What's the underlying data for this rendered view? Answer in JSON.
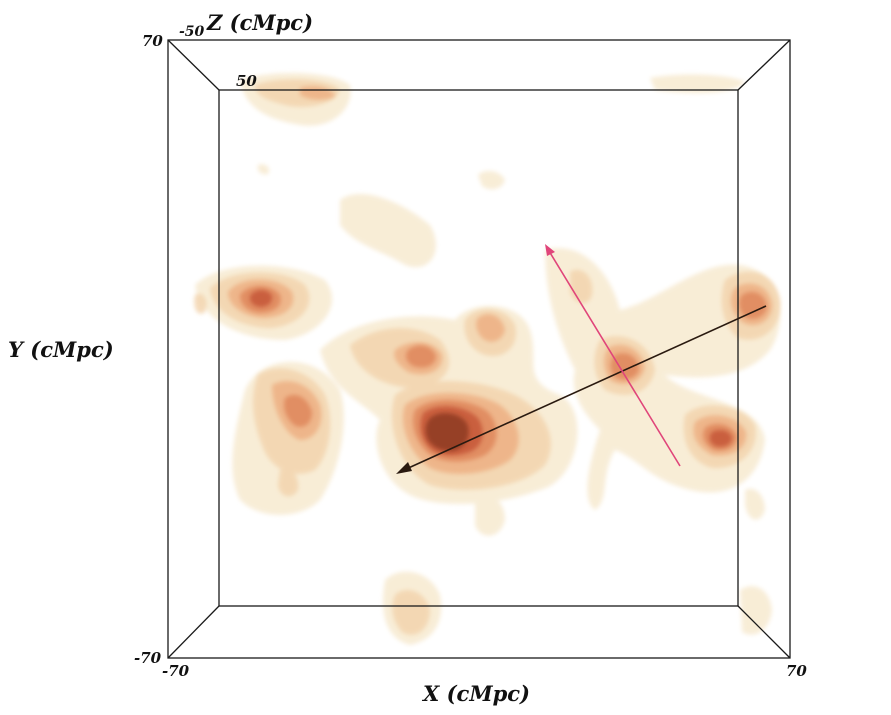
{
  "axes": {
    "x": {
      "label": "X (cMpc)",
      "min_label": "-70",
      "max_label": "70"
    },
    "y": {
      "label": "Y (cMpc)",
      "min_label": "-70",
      "max_label": "70"
    },
    "z": {
      "label": "Z (cMpc)",
      "near_label": "-50",
      "far_label": "50"
    }
  },
  "colors": {
    "box_edge": "#1a1a1a",
    "density_levels": [
      "#f7ead0",
      "#f3d4ae",
      "#eeb286",
      "#e08a5e",
      "#c75a3a",
      "#8e3a22"
    ],
    "black_arrow": "#2a1a10",
    "pink_arrow": "#e0457a"
  }
}
